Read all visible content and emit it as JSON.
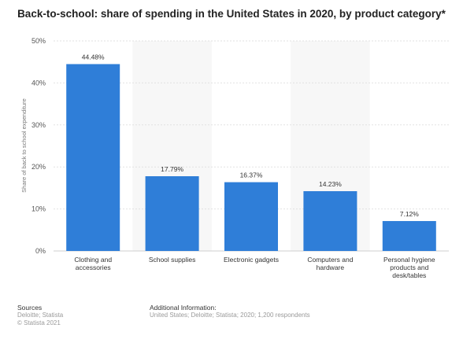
{
  "title": "Back-to-school: share of spending in the United States in 2020, by product category*",
  "chart_data": {
    "type": "bar",
    "categories": [
      [
        "Clothing and",
        "accessories"
      ],
      [
        "School supplies"
      ],
      [
        "Electronic gadgets"
      ],
      [
        "Computers and",
        "hardware"
      ],
      [
        "Personal hygiene",
        "products and",
        "desk/tables"
      ]
    ],
    "values": [
      44.48,
      17.79,
      16.37,
      14.23,
      7.12
    ],
    "value_labels": [
      "44.48%",
      "17.79%",
      "16.37%",
      "14.23%",
      "7.12%"
    ],
    "ylabel": "Share of back to school expenditure",
    "xlabel": "",
    "ylim": [
      0,
      50
    ],
    "yticks": [
      "0%",
      "10%",
      "20%",
      "30%",
      "40%",
      "50%"
    ],
    "ytick_values": [
      0,
      10,
      20,
      30,
      40,
      50
    ],
    "grid": true,
    "bar_color": "#2f7ed8"
  },
  "footer": {
    "sources_label": "Sources",
    "sources": [
      "Deloitte; Statista",
      "© Statista 2021"
    ],
    "info_label": "Additional Information:",
    "info": "United States; Deloitte; Statista; 2020; 1,200 respondents"
  }
}
